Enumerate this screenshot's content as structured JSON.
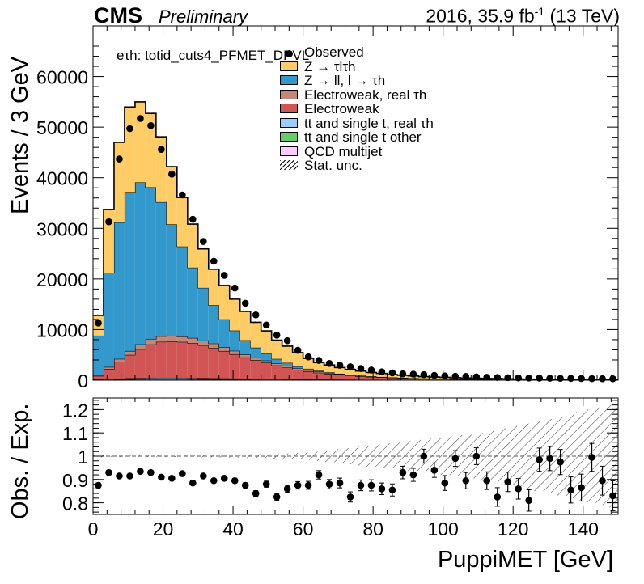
{
  "header": {
    "experiment": "CMS",
    "status": "Preliminary",
    "lumi_prefix": "2016, 35.9 fb",
    "lumi_exp": "-1",
    "lumi_suffix": " (13 TeV)"
  },
  "category_label": "eτh: totid_cuts4_PFMET_DPVL",
  "legend": [
    {
      "label": "Observed",
      "style": "marker",
      "color": "#000000"
    },
    {
      "label": "Z → τlτh",
      "style": "fill",
      "color": "#ffcc66"
    },
    {
      "label": "Z → ll, l → τh",
      "style": "fill",
      "color": "#3399cc"
    },
    {
      "label": "Electroweak, real  τh",
      "style": "fill",
      "color": "#c08878"
    },
    {
      "label": "Electroweak",
      "style": "fill",
      "color": "#d25555"
    },
    {
      "label": "tt and single t, real  τh",
      "style": "fill",
      "color": "#99ccff"
    },
    {
      "label": "tt and single t other",
      "style": "fill",
      "color": "#66cc66"
    },
    {
      "label": "QCD multijet",
      "style": "fill",
      "color": "#ffccff"
    },
    {
      "label": "Stat. unc.",
      "style": "hatch",
      "color": "#000000"
    }
  ],
  "chart_data": [
    {
      "type": "area",
      "subtype": "stacked-histogram",
      "xlabel": "",
      "ylabel": "Events / 3 GeV",
      "xlim": [
        0,
        150
      ],
      "ylim": [
        0,
        70000
      ],
      "yticks": [
        0,
        10000,
        20000,
        30000,
        40000,
        50000,
        60000
      ],
      "bin_width": 3,
      "bin_edges_start": [
        0,
        3,
        6,
        9,
        12,
        15,
        18,
        21,
        24,
        27,
        30,
        33,
        36,
        39,
        42,
        45,
        48,
        51,
        54,
        57,
        60,
        63,
        66,
        69,
        72,
        75,
        78,
        81,
        84,
        87,
        90,
        93,
        96,
        99,
        102,
        105,
        108,
        111,
        114,
        117,
        120,
        123,
        126,
        129,
        132,
        135,
        138,
        141,
        144,
        147
      ],
      "series": [
        {
          "name": "QCD multijet",
          "color": "#ffccff",
          "values": [
            20,
            30,
            40,
            40,
            40,
            40,
            40,
            40,
            40,
            40,
            30,
            30,
            30,
            30,
            20,
            20,
            20,
            20,
            20,
            10,
            10,
            10,
            10,
            10,
            10,
            5,
            5,
            5,
            5,
            5,
            5,
            5,
            5,
            5,
            5,
            5,
            5,
            5,
            5,
            5,
            5,
            5,
            5,
            5,
            5,
            5,
            5,
            5,
            5,
            5
          ]
        },
        {
          "name": "tt and single t other",
          "color": "#66cc66",
          "values": [
            50,
            80,
            120,
            150,
            170,
            180,
            190,
            190,
            180,
            170,
            160,
            150,
            140,
            130,
            120,
            110,
            100,
            90,
            80,
            70,
            60,
            55,
            50,
            45,
            40,
            36,
            32,
            28,
            25,
            22,
            20,
            18,
            16,
            14,
            12,
            11,
            10,
            9,
            8,
            7,
            6,
            6,
            5,
            5,
            4,
            4,
            4,
            3,
            3,
            3
          ]
        },
        {
          "name": "tt and single t, real  τh",
          "color": "#99ccff",
          "values": [
            80,
            120,
            160,
            200,
            220,
            240,
            250,
            250,
            240,
            230,
            220,
            200,
            190,
            170,
            160,
            140,
            130,
            110,
            100,
            90,
            80,
            70,
            65,
            58,
            52,
            46,
            40,
            36,
            32,
            28,
            25,
            22,
            20,
            18,
            16,
            14,
            12,
            11,
            10,
            9,
            8,
            7,
            7,
            6,
            6,
            5,
            5,
            4,
            4,
            4
          ]
        },
        {
          "name": "Electroweak",
          "color": "#d25555",
          "values": [
            700,
            2000,
            3300,
            4600,
            5700,
            6600,
            7100,
            7200,
            7100,
            6900,
            6500,
            6000,
            5400,
            4800,
            4200,
            3700,
            3200,
            2700,
            2300,
            1900,
            1600,
            1350,
            1150,
            950,
            800,
            680,
            580,
            490,
            420,
            360,
            310,
            270,
            230,
            200,
            175,
            150,
            130,
            115,
            100,
            90,
            80,
            72,
            64,
            57,
            51,
            46,
            41,
            37,
            33,
            30
          ]
        },
        {
          "name": "Electroweak, real  τh",
          "color": "#c08878",
          "values": [
            150,
            380,
            580,
            780,
            950,
            1050,
            1100,
            1100,
            1050,
            1000,
            930,
            850,
            760,
            670,
            590,
            510,
            440,
            380,
            320,
            270,
            230,
            195,
            165,
            140,
            118,
            100,
            85,
            72,
            61,
            52,
            44,
            38,
            33,
            28,
            24,
            21,
            18,
            16,
            14,
            12,
            11,
            10,
            9,
            8,
            7,
            6,
            6,
            5,
            5,
            4
          ]
        },
        {
          "name": "Z → ll, l → τh",
          "color": "#3399cc",
          "values": [
            7800,
            18600,
            27000,
            31400,
            32000,
            30000,
            26500,
            22000,
            17800,
            13900,
            10400,
            7600,
            5500,
            4000,
            2800,
            1950,
            1350,
            900,
            600,
            400,
            270,
            180,
            120,
            80,
            55,
            36,
            24,
            16,
            11,
            7,
            5,
            3,
            2,
            2,
            1,
            1,
            1,
            1,
            1,
            1,
            1,
            1,
            0,
            0,
            0,
            0,
            0,
            0,
            0,
            0
          ]
        },
        {
          "name": "Z → τlτh",
          "color": "#ffcc66",
          "values": [
            4000,
            12500,
            15800,
            16800,
            15900,
            14600,
            12900,
            11400,
            9700,
            8600,
            7700,
            7100,
            6700,
            6200,
            5700,
            5000,
            4500,
            3700,
            3300,
            2700,
            2050,
            1630,
            1440,
            1220,
            1060,
            910,
            770,
            690,
            560,
            490,
            440,
            360,
            330,
            300,
            260,
            220,
            210,
            180,
            165,
            150,
            130,
            120,
            110,
            100,
            90,
            80,
            75,
            70,
            60,
            55
          ]
        }
      ],
      "observed": [
        11300,
        31300,
        43700,
        49700,
        51700,
        50300,
        45600,
        40700,
        36600,
        31800,
        27400,
        23500,
        20700,
        18200,
        15200,
        12900,
        10900,
        8900,
        7800,
        5900,
        4600,
        3900,
        3300,
        2950,
        2650,
        2300,
        2000,
        1650,
        1450,
        1250,
        1200,
        1100,
        950,
        850,
        800,
        750,
        650,
        580,
        540,
        500,
        450,
        420,
        410,
        380,
        360,
        350,
        330,
        310,
        290,
        280
      ],
      "unc_line_offset": 350,
      "unc_line_label": "Stat. unc."
    },
    {
      "type": "scatter",
      "subtype": "ratio-with-errors",
      "xlabel": "PuppiMET [GeV]",
      "ylabel": "Obs. / Exp.",
      "xlim": [
        0,
        150
      ],
      "ylim": [
        0.75,
        1.25
      ],
      "xticks": [
        0,
        20,
        40,
        60,
        80,
        100,
        120,
        140
      ],
      "yticks": [
        0.8,
        0.9,
        1,
        1.1,
        1.2
      ],
      "reference_line": 1,
      "ratio": [
        0.875,
        0.93,
        0.915,
        0.915,
        0.935,
        0.93,
        0.91,
        0.905,
        0.925,
        0.885,
        0.915,
        0.895,
        0.905,
        0.895,
        0.875,
        0.84,
        0.88,
        0.825,
        0.86,
        0.875,
        0.875,
        0.92,
        0.88,
        0.885,
        0.825,
        0.875,
        0.875,
        0.86,
        0.855,
        0.93,
        0.92,
        1.0,
        0.94,
        0.885,
        0.99,
        0.895,
        1.0,
        0.895,
        0.825,
        0.89,
        0.86,
        0.81,
        0.985,
        0.99,
        0.975,
        0.855,
        0.865,
        0.995,
        0.895,
        0.83
      ],
      "ratio_err": [
        0.01,
        0.008,
        0.007,
        0.006,
        0.006,
        0.006,
        0.006,
        0.006,
        0.007,
        0.007,
        0.008,
        0.008,
        0.009,
        0.01,
        0.011,
        0.012,
        0.013,
        0.014,
        0.015,
        0.016,
        0.017,
        0.018,
        0.02,
        0.021,
        0.022,
        0.023,
        0.024,
        0.025,
        0.026,
        0.027,
        0.028,
        0.03,
        0.031,
        0.032,
        0.034,
        0.035,
        0.036,
        0.038,
        0.04,
        0.042,
        0.044,
        0.046,
        0.05,
        0.052,
        0.054,
        0.056,
        0.058,
        0.06,
        0.062,
        0.064
      ],
      "stat_band_halfwidth": [
        0.005,
        0.004,
        0.004,
        0.004,
        0.004,
        0.004,
        0.004,
        0.004,
        0.004,
        0.005,
        0.005,
        0.006,
        0.006,
        0.007,
        0.008,
        0.009,
        0.01,
        0.011,
        0.012,
        0.014,
        0.016,
        0.02,
        0.025,
        0.03,
        0.035,
        0.04,
        0.045,
        0.05,
        0.055,
        0.06,
        0.065,
        0.07,
        0.075,
        0.08,
        0.085,
        0.09,
        0.095,
        0.1,
        0.11,
        0.12,
        0.13,
        0.14,
        0.15,
        0.16,
        0.17,
        0.18,
        0.19,
        0.2,
        0.21,
        0.22
      ]
    }
  ]
}
